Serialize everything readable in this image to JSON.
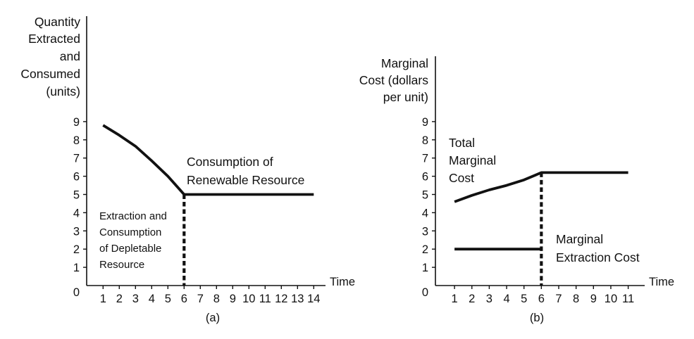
{
  "chart_data": [
    {
      "type": "line",
      "panel_label": "(a)",
      "ylabel_lines": [
        "Quantity",
        "Extracted",
        "and",
        "Consumed",
        "(units)"
      ],
      "xlabel": "Time",
      "x_ticks": [
        1,
        2,
        3,
        4,
        5,
        6,
        7,
        8,
        9,
        10,
        11,
        12,
        13,
        14
      ],
      "y_ticks": [
        0,
        1,
        2,
        3,
        4,
        5,
        6,
        7,
        8,
        9
      ],
      "xlim": [
        0,
        14.5
      ],
      "ylim": [
        0,
        9
      ],
      "series": [
        {
          "label_lines": [
            "Extraction and",
            "Consumption",
            "of Depletable",
            "Resource"
          ],
          "x": [
            1,
            2,
            3,
            4,
            5,
            6
          ],
          "y": [
            8.8,
            8.25,
            7.65,
            6.85,
            6.0,
            5.0
          ]
        },
        {
          "label_lines": [
            "Consumption of",
            "Renewable Resource"
          ],
          "x": [
            6,
            14
          ],
          "y": [
            5.0,
            5.0
          ]
        }
      ],
      "dashed_vertical": {
        "x": 6,
        "y_from": 0,
        "y_to": 5.0
      }
    },
    {
      "type": "line",
      "panel_label": "(b)",
      "ylabel_lines": [
        "Marginal",
        "Cost (dollars",
        "per unit)"
      ],
      "xlabel": "Time",
      "x_ticks": [
        1,
        2,
        3,
        4,
        5,
        6,
        7,
        8,
        9,
        10,
        11
      ],
      "y_ticks": [
        0,
        1,
        2,
        3,
        4,
        5,
        6,
        7,
        8,
        9
      ],
      "xlim": [
        0,
        11.4
      ],
      "ylim": [
        0,
        9
      ],
      "series": [
        {
          "label_lines": [
            "Total",
            "Marginal",
            "Cost"
          ],
          "x": [
            1,
            2,
            3,
            4,
            5,
            6,
            11
          ],
          "y": [
            4.6,
            4.95,
            5.25,
            5.5,
            5.8,
            6.2,
            6.2
          ]
        },
        {
          "label_lines": [
            "Marginal",
            "Extraction Cost"
          ],
          "x": [
            1,
            6
          ],
          "y": [
            2.0,
            2.0
          ]
        }
      ],
      "dashed_vertical": {
        "x": 6,
        "y_from": 0,
        "y_to": 6.2
      }
    }
  ]
}
